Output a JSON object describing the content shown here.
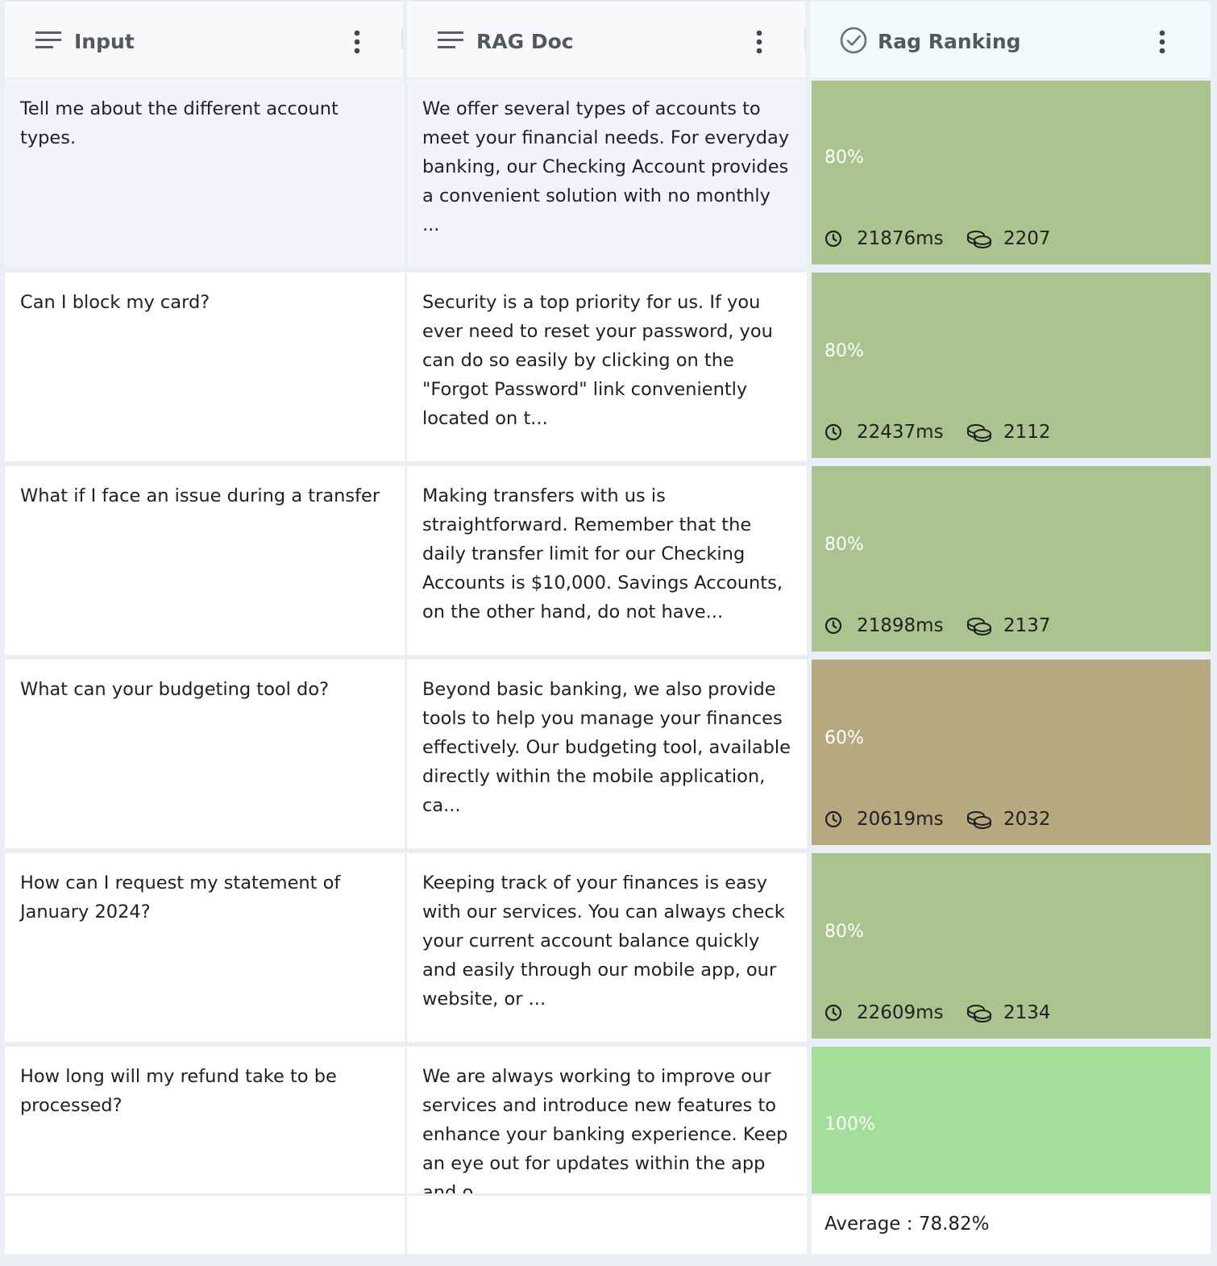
{
  "columns": [
    {
      "label": "Input",
      "icon": "text-lines-icon"
    },
    {
      "label": "RAG Doc",
      "icon": "text-lines-icon"
    },
    {
      "label": "Rag Ranking",
      "icon": "check-circle-icon"
    }
  ],
  "colors": {
    "score_80": "#abc38e",
    "score_60": "#b6a980",
    "score_100": "#a5dd9a",
    "header_accent": "#f0fbfd",
    "selected_row": "#f3f3fe"
  },
  "rows": [
    {
      "input": "Tell me about the different account types.",
      "rag_doc": "We offer several types of accounts to meet your financial needs. For everyday banking, our Checking Account provides a convenient solution with no monthly ...",
      "score": "80%",
      "latency": "21876ms",
      "tokens": "2207"
    },
    {
      "input": "Can I block my card?",
      "rag_doc": "Security is a top priority for us. If you ever need to reset your password, you can do so easily by clicking on the \"Forgot Password\" link conveniently located on t...",
      "score": "80%",
      "latency": "22437ms",
      "tokens": "2112"
    },
    {
      "input": "What if I face an issue during a transfer",
      "rag_doc": "Making transfers with us is straightforward. Remember that the daily transfer limit for our Checking Accounts is $10,000. Savings Accounts, on the other hand, do not have...",
      "score": "80%",
      "latency": "21898ms",
      "tokens": "2137"
    },
    {
      "input": "What can your budgeting tool do?",
      "rag_doc": "Beyond basic banking, we also provide tools to help you manage your finances effectively. Our budgeting tool, available directly within the mobile application, ca...",
      "score": "60%",
      "latency": "20619ms",
      "tokens": "2032"
    },
    {
      "input": "How can I request my statement of January 2024?",
      "rag_doc": "Keeping track of your finances is easy with our services. You can always check your current account balance quickly and easily through our mobile app, our website, or ...",
      "score": "80%",
      "latency": "22609ms",
      "tokens": "2134"
    },
    {
      "input": "How long will my refund take to be processed?",
      "rag_doc": "We are always working to improve our services and introduce new features to enhance your banking experience. Keep an eye out for updates within the app and o...",
      "score": "100%"
    }
  ],
  "footer": {
    "average": "Average : 78.82%"
  }
}
